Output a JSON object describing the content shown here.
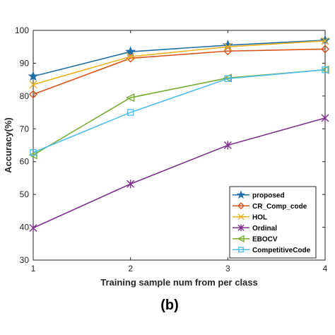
{
  "caption": "(b)",
  "chart_data": {
    "type": "line",
    "xlabel": "Training sample num from per class",
    "ylabel": "Accuracy(%)",
    "x": [
      1,
      2,
      3,
      4
    ],
    "xlim": [
      1,
      4
    ],
    "ylim": [
      30,
      100
    ],
    "xticks": [
      "1",
      "2",
      "3",
      "4"
    ],
    "yticks": [
      "30",
      "40",
      "50",
      "60",
      "70",
      "80",
      "90",
      "100"
    ],
    "grid": false,
    "legend_position": "lower-right",
    "series": [
      {
        "name": "proposed",
        "values": [
          86.0,
          93.5,
          95.5,
          97.0
        ],
        "color": "#1f6fa6",
        "marker": "star"
      },
      {
        "name": "CR_Comp_code",
        "values": [
          80.5,
          91.5,
          93.7,
          94.3
        ],
        "color": "#d95319",
        "marker": "diamond"
      },
      {
        "name": "HOL",
        "values": [
          83.5,
          92.0,
          95.0,
          96.8
        ],
        "color": "#edb120",
        "marker": "x"
      },
      {
        "name": "Ordinal",
        "values": [
          39.8,
          53.2,
          65.0,
          73.3
        ],
        "color": "#7e2f8e",
        "marker": "asterisk"
      },
      {
        "name": "EBOCV",
        "values": [
          62.0,
          79.5,
          85.5,
          88.0
        ],
        "color": "#77ac30",
        "marker": "triangle-left"
      },
      {
        "name": "CompetitiveCode",
        "values": [
          62.8,
          75.0,
          85.3,
          88.0
        ],
        "color": "#4dbeee",
        "marker": "square"
      }
    ]
  }
}
